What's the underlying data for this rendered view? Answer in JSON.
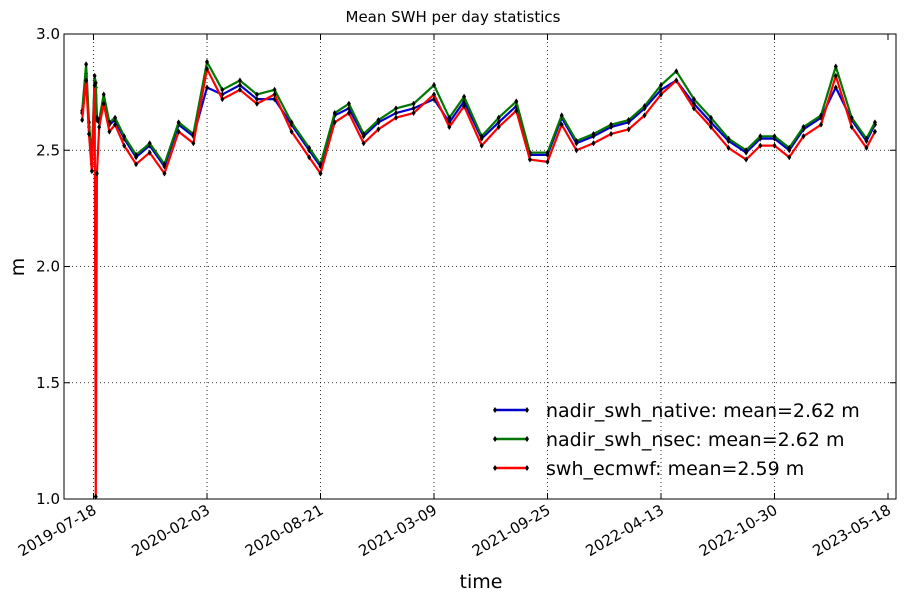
{
  "chart_data": {
    "type": "line",
    "title": "Mean SWH per day statistics",
    "xlabel": "time",
    "ylabel": "m",
    "ylim": [
      1.0,
      3.0
    ],
    "yticks": [
      1.0,
      1.5,
      2.0,
      2.5,
      3.0
    ],
    "ytick_labels": [
      "1.0",
      "1.5",
      "2.0",
      "2.5",
      "3.0"
    ],
    "xlim": [
      "2019-07-18",
      "2023-05-18"
    ],
    "xticks": [
      "2019-07-18",
      "2020-02-03",
      "2020-08-21",
      "2021-03-09",
      "2021-09-25",
      "2022-04-13",
      "2022-10-30",
      "2023-05-18"
    ],
    "grid": true,
    "legend_position": "lower-right",
    "series": [
      {
        "name": "nadir_swh_native: mean=2.62 m",
        "color": "#0000cc",
        "x": [
          "2019-06-28",
          "2019-07-05",
          "2019-07-10",
          "2019-07-15",
          "2019-07-20",
          "2019-07-22",
          "2019-07-24",
          "2019-07-28",
          "2019-08-05",
          "2019-08-15",
          "2019-08-25",
          "2019-09-10",
          "2019-10-01",
          "2019-10-25",
          "2019-11-20",
          "2019-12-15",
          "2020-01-10",
          "2020-02-03",
          "2020-03-01",
          "2020-04-01",
          "2020-05-01",
          "2020-06-01",
          "2020-07-01",
          "2020-08-01",
          "2020-08-21",
          "2020-09-15",
          "2020-10-10",
          "2020-11-05",
          "2020-12-01",
          "2021-01-01",
          "2021-02-01",
          "2021-03-09",
          "2021-04-05",
          "2021-05-01",
          "2021-06-01",
          "2021-07-01",
          "2021-08-01",
          "2021-08-25",
          "2021-09-25",
          "2021-10-20",
          "2021-11-15",
          "2021-12-15",
          "2022-01-15",
          "2022-02-15",
          "2022-03-15",
          "2022-04-13",
          "2022-05-10",
          "2022-06-10",
          "2022-07-10",
          "2022-08-10",
          "2022-09-10",
          "2022-10-05",
          "2022-10-30",
          "2022-11-25",
          "2022-12-20",
          "2023-01-20",
          "2023-02-15",
          "2023-03-15",
          "2023-04-10",
          "2023-04-25"
        ],
        "y": [
          2.66,
          2.83,
          2.6,
          2.44,
          2.8,
          2.77,
          2.63,
          2.62,
          2.72,
          2.61,
          2.63,
          2.55,
          2.47,
          2.52,
          2.43,
          2.61,
          2.56,
          2.77,
          2.74,
          2.78,
          2.72,
          2.72,
          2.61,
          2.5,
          2.43,
          2.65,
          2.68,
          2.56,
          2.62,
          2.66,
          2.68,
          2.72,
          2.62,
          2.71,
          2.55,
          2.62,
          2.69,
          2.48,
          2.48,
          2.64,
          2.53,
          2.56,
          2.6,
          2.62,
          2.68,
          2.76,
          2.8,
          2.7,
          2.62,
          2.54,
          2.49,
          2.55,
          2.55,
          2.5,
          2.59,
          2.64,
          2.77,
          2.63,
          2.54,
          2.61
        ]
      },
      {
        "name": "nadir_swh_nsec: mean=2.62 m",
        "color": "#007700",
        "x": [
          "2019-06-28",
          "2019-07-05",
          "2019-07-10",
          "2019-07-15",
          "2019-07-20",
          "2019-07-22",
          "2019-07-24",
          "2019-07-28",
          "2019-08-05",
          "2019-08-15",
          "2019-08-25",
          "2019-09-10",
          "2019-10-01",
          "2019-10-25",
          "2019-11-20",
          "2019-12-15",
          "2020-01-10",
          "2020-02-03",
          "2020-03-01",
          "2020-04-01",
          "2020-05-01",
          "2020-06-01",
          "2020-07-01",
          "2020-08-01",
          "2020-08-21",
          "2020-09-15",
          "2020-10-10",
          "2020-11-05",
          "2020-12-01",
          "2021-01-01",
          "2021-02-01",
          "2021-03-09",
          "2021-04-05",
          "2021-05-01",
          "2021-06-01",
          "2021-07-01",
          "2021-08-01",
          "2021-08-25",
          "2021-09-25",
          "2021-10-20",
          "2021-11-15",
          "2021-12-15",
          "2022-01-15",
          "2022-02-15",
          "2022-03-15",
          "2022-04-13",
          "2022-05-10",
          "2022-06-10",
          "2022-07-10",
          "2022-08-10",
          "2022-09-10",
          "2022-10-05",
          "2022-10-30",
          "2022-11-25",
          "2022-12-20",
          "2023-01-20",
          "2023-02-15",
          "2023-03-15",
          "2023-04-10",
          "2023-04-25"
        ],
        "y": [
          2.67,
          2.87,
          2.62,
          2.46,
          2.82,
          2.79,
          2.64,
          2.63,
          2.74,
          2.62,
          2.64,
          2.56,
          2.48,
          2.53,
          2.44,
          2.62,
          2.57,
          2.88,
          2.76,
          2.8,
          2.74,
          2.76,
          2.62,
          2.51,
          2.44,
          2.66,
          2.7,
          2.57,
          2.63,
          2.68,
          2.7,
          2.78,
          2.64,
          2.73,
          2.56,
          2.64,
          2.71,
          2.49,
          2.49,
          2.65,
          2.54,
          2.57,
          2.61,
          2.63,
          2.69,
          2.78,
          2.84,
          2.72,
          2.64,
          2.55,
          2.5,
          2.56,
          2.56,
          2.51,
          2.6,
          2.65,
          2.86,
          2.64,
          2.55,
          2.62
        ]
      },
      {
        "name": "swh_ecmwf: mean=2.59 m",
        "color": "#ff0000",
        "x": [
          "2019-06-28",
          "2019-07-05",
          "2019-07-10",
          "2019-07-15",
          "2019-07-20",
          "2019-07-22",
          "2019-07-24",
          "2019-07-28",
          "2019-08-05",
          "2019-08-15",
          "2019-08-25",
          "2019-09-10",
          "2019-10-01",
          "2019-10-25",
          "2019-11-20",
          "2019-12-15",
          "2020-01-10",
          "2020-02-03",
          "2020-03-01",
          "2020-04-01",
          "2020-05-01",
          "2020-06-01",
          "2020-07-01",
          "2020-08-01",
          "2020-08-21",
          "2020-09-15",
          "2020-10-10",
          "2020-11-05",
          "2020-12-01",
          "2021-01-01",
          "2021-02-01",
          "2021-03-09",
          "2021-04-05",
          "2021-05-01",
          "2021-06-01",
          "2021-07-01",
          "2021-08-01",
          "2021-08-25",
          "2021-09-25",
          "2021-10-20",
          "2021-11-15",
          "2021-12-15",
          "2022-01-15",
          "2022-02-15",
          "2022-03-15",
          "2022-04-13",
          "2022-05-10",
          "2022-06-10",
          "2022-07-10",
          "2022-08-10",
          "2022-09-10",
          "2022-10-05",
          "2022-10-30",
          "2022-11-25",
          "2022-12-20",
          "2023-01-20",
          "2023-02-15",
          "2023-03-15",
          "2023-04-10",
          "2023-04-25"
        ],
        "y": [
          2.63,
          2.8,
          2.57,
          2.41,
          2.78,
          1.01,
          2.4,
          2.6,
          2.7,
          2.58,
          2.61,
          2.52,
          2.44,
          2.49,
          2.4,
          2.58,
          2.53,
          2.85,
          2.72,
          2.76,
          2.7,
          2.74,
          2.58,
          2.47,
          2.4,
          2.62,
          2.66,
          2.53,
          2.59,
          2.64,
          2.66,
          2.74,
          2.6,
          2.69,
          2.52,
          2.6,
          2.67,
          2.46,
          2.45,
          2.61,
          2.5,
          2.53,
          2.57,
          2.59,
          2.65,
          2.74,
          2.8,
          2.68,
          2.6,
          2.51,
          2.46,
          2.52,
          2.52,
          2.47,
          2.56,
          2.61,
          2.82,
          2.6,
          2.51,
          2.58
        ]
      }
    ]
  }
}
